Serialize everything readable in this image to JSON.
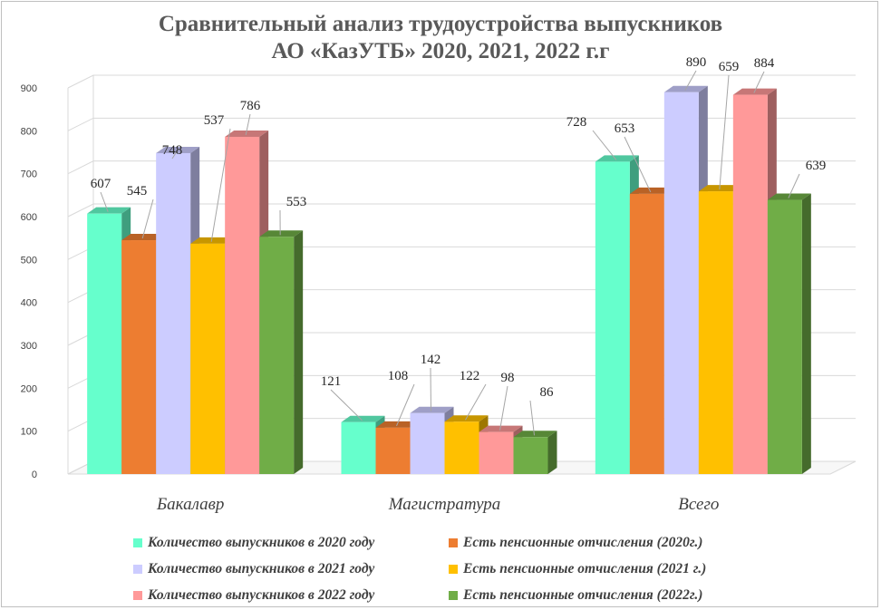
{
  "title_lines": [
    "Сравнительный анализ трудоустройства выпускников",
    "АО «КазУТБ» 2020, 2021, 2022 г.г"
  ],
  "chart_data": {
    "type": "bar",
    "title": "Сравнительный анализ трудоустройства выпускников АО «КазУТБ» 2020, 2021, 2022 г.г",
    "categories": [
      "Бакалавр",
      "Магистратура",
      "Всего"
    ],
    "y_ticks": [
      "0",
      "100",
      "200",
      "300",
      "400",
      "500",
      "600",
      "700",
      "800",
      "900"
    ],
    "ylim": [
      0,
      900
    ],
    "grid": true,
    "legend_position": "bottom",
    "series": [
      {
        "name": "Количество выпускников в 2020 году",
        "values": [
          607,
          121,
          728
        ],
        "labels": [
          "607",
          "121",
          "728"
        ],
        "color": "#66FFCC"
      },
      {
        "name": "Есть пенсионные отчисления (2020г.)",
        "values": [
          545,
          108,
          653
        ],
        "labels": [
          "545",
          "108",
          "653"
        ],
        "color": "#ED7D31"
      },
      {
        "name": "Количество выпускников в 2021 году",
        "values": [
          748,
          142,
          890
        ],
        "labels": [
          "748",
          "142",
          "890"
        ],
        "color": "#CCCCFF"
      },
      {
        "name": "Есть пенсионные отчисления (2021 г.)",
        "values": [
          537,
          122,
          659
        ],
        "labels": [
          "537",
          "122",
          "659"
        ],
        "color": "#FFC000"
      },
      {
        "name": "Количество выпускников в 2022 году",
        "values": [
          786,
          98,
          884
        ],
        "labels": [
          "786",
          "98",
          "884"
        ],
        "color": "#FF9999"
      },
      {
        "name": "Есть пенсионные отчисления (2022г.)",
        "values": [
          553,
          86,
          639
        ],
        "labels": [
          "553",
          "86",
          "639"
        ],
        "color": "#70AD47"
      }
    ]
  },
  "legend_order": [
    0,
    1,
    2,
    3,
    4,
    5
  ]
}
